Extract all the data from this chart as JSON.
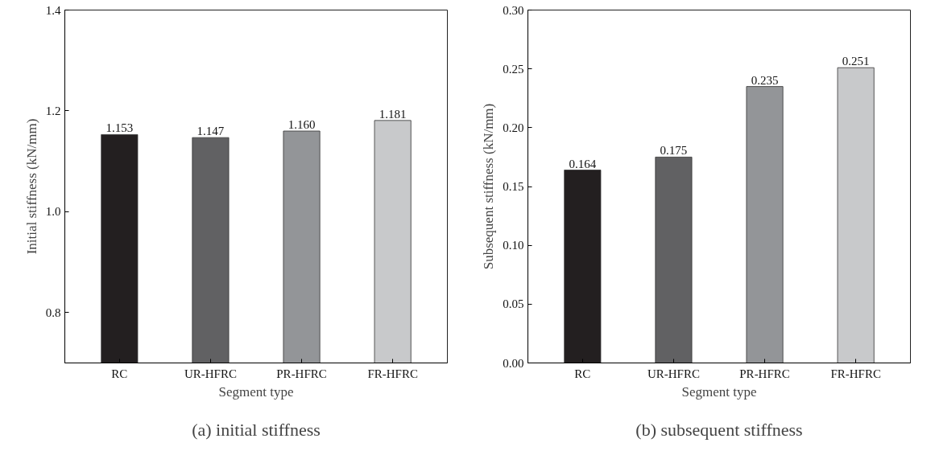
{
  "chart_data": [
    {
      "type": "bar",
      "title": "(a) initial stiffness",
      "xlabel": "Segment type",
      "ylabel": "Initial stiffness (kN/mm)",
      "categories": [
        "RC",
        "UR-HFRC",
        "PR-HFRC",
        "FR-HFRC"
      ],
      "values": [
        1.153,
        1.147,
        1.16,
        1.181
      ],
      "colors": [
        "#231f20",
        "#616163",
        "#939598",
        "#c8c9cb"
      ],
      "value_labels": [
        "1.153",
        "1.147",
        "1.160",
        "1.181"
      ],
      "ylim": [
        0.7,
        1.4
      ],
      "yticks": [
        {
          "value": 0.8,
          "label": "0.8"
        },
        {
          "value": 1.0,
          "label": "1.0"
        },
        {
          "value": 1.2,
          "label": "1.2"
        },
        {
          "value": 1.4,
          "label": "1.4"
        }
      ],
      "grid": false
    },
    {
      "type": "bar",
      "title": "(b) subsequent stiffness",
      "xlabel": "Segment type",
      "ylabel": "Subsequent stiffness (kN/mm)",
      "categories": [
        "RC",
        "UR-HFRC",
        "PR-HFRC",
        "FR-HFRC"
      ],
      "values": [
        0.164,
        0.175,
        0.235,
        0.251
      ],
      "colors": [
        "#231f20",
        "#616163",
        "#939598",
        "#c8c9cb"
      ],
      "value_labels": [
        "0.164",
        "0.175",
        "0.235",
        "0.251"
      ],
      "ylim": [
        0,
        0.3
      ],
      "yticks": [
        {
          "value": 0,
          "label": "0.00"
        },
        {
          "value": 0.05,
          "label": "0.05"
        },
        {
          "value": 0.1,
          "label": "0.10"
        },
        {
          "value": 0.15,
          "label": "0.15"
        },
        {
          "value": 0.2,
          "label": "0.20"
        },
        {
          "value": 0.25,
          "label": "0.25"
        },
        {
          "value": 0.3,
          "label": "0.30"
        }
      ],
      "grid": false
    }
  ]
}
